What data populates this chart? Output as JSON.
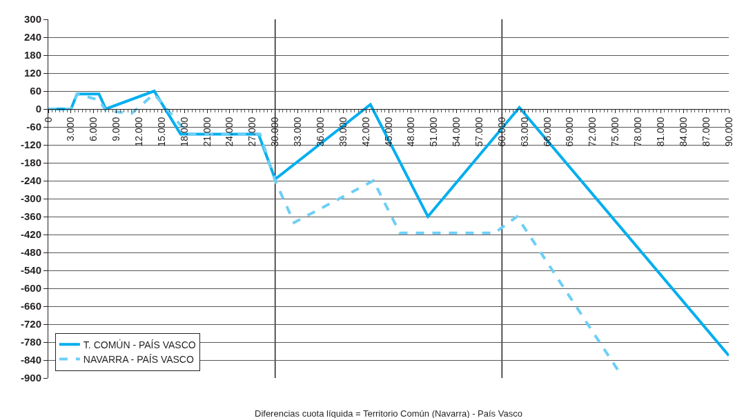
{
  "chart_data": {
    "type": "line",
    "annotations": [
      "Diferencias cuota líquida = Territorio Común (Navarra) - País Vasco"
    ],
    "series": [
      {
        "name": "T. COMÚN - PAÍS VASCO",
        "color": "#00aeef",
        "line_style": "solid",
        "x": [
          0,
          3000,
          3800,
          6700,
          7600,
          14000,
          17500,
          27800,
          30000,
          42600,
          50200,
          62300,
          90000
        ],
        "values": [
          0,
          0,
          50,
          50,
          0,
          60,
          -84,
          -84,
          -235,
          15,
          -360,
          5,
          -825
        ]
      },
      {
        "name": "NAVARRA - PAÍS VASCO",
        "color": "#6dcff6",
        "line_style": "dashed",
        "x": [
          0,
          3000,
          3800,
          6700,
          7600,
          11000,
          14000,
          18500,
          28000,
          30000,
          32500,
          43000,
          46500,
          59000,
          62000,
          75500
        ],
        "values": [
          0,
          0,
          50,
          30,
          -5,
          -15,
          50,
          -84,
          -84,
          -240,
          -380,
          -240,
          -415,
          -415,
          -360,
          -880
        ]
      }
    ],
    "xlim": [
      0,
      90000
    ],
    "xticks": [
      0,
      {
        "value": 3000,
        "label": "3.000"
      },
      {
        "value": 6000,
        "label": "6.000"
      },
      {
        "value": 9000,
        "label": "9.000"
      },
      {
        "value": 12000,
        "label": "12.000"
      },
      {
        "value": 15000,
        "label": "15.000"
      },
      {
        "value": 18000,
        "label": "18.000"
      },
      {
        "value": 21000,
        "label": "21.000"
      },
      {
        "value": 24000,
        "label": "24.000"
      },
      {
        "value": 27000,
        "label": "27.000"
      },
      {
        "value": 30000,
        "label": "30.000"
      },
      {
        "value": 33000,
        "label": "33.000"
      },
      {
        "value": 36000,
        "label": "36.000"
      },
      {
        "value": 39000,
        "label": "39.000"
      },
      {
        "value": 42000,
        "label": "42.000"
      },
      {
        "value": 45000,
        "label": "45.000"
      },
      {
        "value": 48000,
        "label": "48.000"
      },
      {
        "value": 51000,
        "label": "51.000"
      },
      {
        "value": 54000,
        "label": "54.000"
      },
      {
        "value": 57000,
        "label": "57.000"
      },
      {
        "value": 60000,
        "label": "60.000"
      },
      {
        "value": 63000,
        "label": "63.000"
      },
      {
        "value": 66000,
        "label": "66.000"
      },
      {
        "value": 69000,
        "label": "69.000"
      },
      {
        "value": 72000,
        "label": "72.000"
      },
      {
        "value": 75000,
        "label": "75.000"
      },
      {
        "value": 78000,
        "label": "78.000"
      },
      {
        "value": 81000,
        "label": "81.000"
      },
      {
        "value": 84000,
        "label": "84.000"
      },
      {
        "value": 87000,
        "label": "87.000"
      },
      {
        "value": 90000,
        "label": "90.000"
      }
    ],
    "ylim": [
      -900,
      300
    ],
    "yticks": [
      300,
      240,
      180,
      120,
      60,
      0,
      -60,
      -120,
      -180,
      -240,
      -300,
      -360,
      -420,
      -480,
      -540,
      -600,
      -660,
      -720,
      -780,
      -840,
      -900
    ],
    "ref_lines": [
      {
        "axis": "x",
        "value": 30000,
        "color": "#231f20"
      },
      {
        "axis": "x",
        "value": 60000,
        "color": "#231f20"
      }
    ],
    "grid": "y",
    "legend": "bottom left",
    "marker": "none"
  }
}
